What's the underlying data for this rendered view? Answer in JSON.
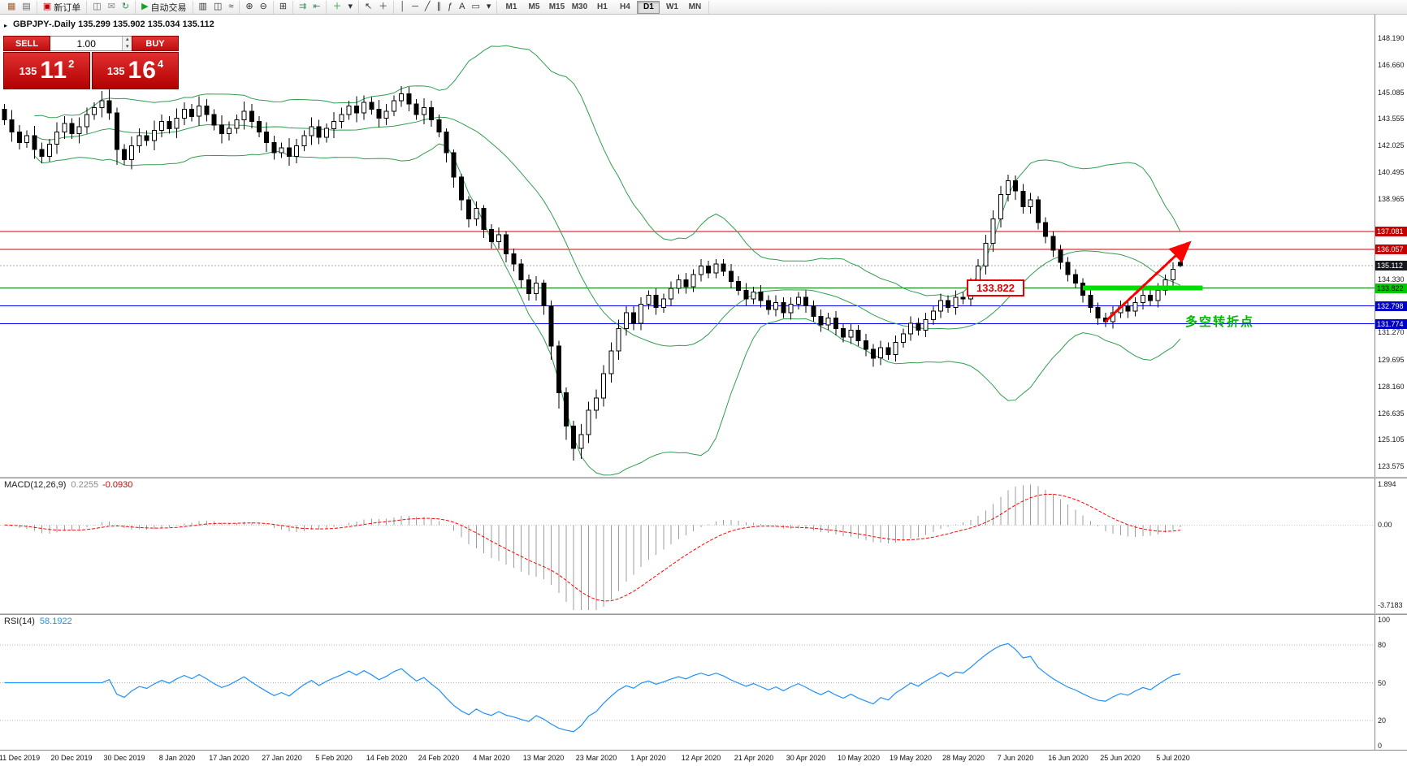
{
  "header": {
    "title": "GBPJPY-.Daily 135.299 135.902 135.034 135.112"
  },
  "toolbar": {
    "groups": [
      [
        {
          "id": "new-chart",
          "icon": "▦",
          "color": "#a0622d"
        },
        {
          "id": "profiles",
          "icon": "▤",
          "color": "#666"
        }
      ],
      [
        {
          "id": "new-order",
          "icon": "▣",
          "color": "#c00000",
          "label": "新订单"
        }
      ],
      [
        {
          "id": "chart-window",
          "icon": "◫",
          "color": "#666"
        },
        {
          "id": "mail",
          "icon": "✉",
          "color": "#888"
        },
        {
          "id": "refresh",
          "icon": "↻",
          "color": "#2e8b57"
        }
      ],
      [
        {
          "id": "autotrading",
          "icon": "▶",
          "color": "#17a02b",
          "label": "自动交易"
        }
      ],
      [
        {
          "id": "bars-chart",
          "icon": "▥",
          "color": "#333"
        },
        {
          "id": "candles-chart",
          "icon": "◫",
          "color": "#333"
        },
        {
          "id": "line-chart",
          "icon": "≈",
          "color": "#333"
        }
      ],
      [
        {
          "id": "zoom-in",
          "icon": "⊕",
          "color": "#333"
        },
        {
          "id": "zoom-out",
          "icon": "⊖",
          "color": "#333"
        }
      ],
      [
        {
          "id": "tile-windows",
          "icon": "⊞",
          "color": "#333"
        }
      ],
      [
        {
          "id": "auto-scroll",
          "icon": "⇉",
          "color": "#2e8b57"
        },
        {
          "id": "chart-shift",
          "icon": "⇤",
          "color": "#2e8b57"
        }
      ],
      [
        {
          "id": "indicators",
          "icon": "＋",
          "color": "#17a02b"
        },
        {
          "id": "indicators-dropdown",
          "icon": "▾",
          "color": "#333"
        }
      ],
      [
        {
          "id": "cursor",
          "icon": "↖",
          "color": "#333"
        },
        {
          "id": "crosshair",
          "icon": "＋",
          "color": "#333"
        }
      ],
      [
        {
          "id": "vertical-line",
          "icon": "│",
          "color": "#333"
        },
        {
          "id": "horizontal-line",
          "icon": "─",
          "color": "#333"
        },
        {
          "id": "trendline",
          "icon": "╱",
          "color": "#333"
        },
        {
          "id": "channel",
          "icon": "∥",
          "color": "#333"
        },
        {
          "id": "fibonacci",
          "icon": "ƒ",
          "color": "#333"
        },
        {
          "id": "text",
          "icon": "A",
          "color": "#333"
        },
        {
          "id": "text-label",
          "icon": "▭",
          "color": "#333"
        },
        {
          "id": "shapes-dropdown",
          "icon": "▾",
          "color": "#333"
        }
      ]
    ],
    "timeframes": [
      "M1",
      "M5",
      "M15",
      "M30",
      "H1",
      "H4",
      "D1",
      "W1",
      "MN"
    ],
    "active_timeframe": "D1",
    "right_icons": [
      {
        "id": "community",
        "icon": "➤"
      },
      {
        "id": "arrange",
        "icon": "▦"
      }
    ]
  },
  "trade": {
    "sell_label": "SELL",
    "buy_label": "BUY",
    "volume": "1.00",
    "sell_price": {
      "prefix": "135",
      "big": "11",
      "sup": "2"
    },
    "buy_price": {
      "prefix": "135",
      "big": "16",
      "sup": "4"
    }
  },
  "indicators": {
    "macd": {
      "label": "MACD(12,26,9)",
      "value_main": "0.2255",
      "value_signal": "-0.0930",
      "scale": [
        "1.894",
        "0.00",
        "-3.7183"
      ]
    },
    "rsi": {
      "label": "RSI(14)",
      "value": "58.1922",
      "levels": [
        80,
        50,
        20
      ],
      "scale": [
        "100",
        "80",
        "50",
        "20",
        "0"
      ]
    }
  },
  "price_scale": {
    "axis_labels": [
      "148.190",
      "146.660",
      "145.085",
      "143.555",
      "142.025",
      "140.495",
      "138.965",
      "134.330",
      "131.270",
      "129.695",
      "128.160",
      "126.635",
      "125.105",
      "123.575"
    ],
    "badges": [
      {
        "text": "137.081",
        "type": "red"
      },
      {
        "text": "136.057",
        "type": "red"
      },
      {
        "text": "135.112",
        "type": "dark"
      },
      {
        "text": "133.822",
        "type": "green"
      },
      {
        "text": "132.798",
        "type": "blue"
      },
      {
        "text": "131.774",
        "type": "blue"
      }
    ]
  },
  "chart_data": {
    "type": "candlestick",
    "symbol": "GBPJPY-",
    "period": "Daily",
    "ohlc_display": [
      135.299,
      135.902,
      135.034,
      135.112
    ],
    "ylim": [
      122.97,
      149.55
    ],
    "bollinger": {
      "period": 20,
      "deviation": 2
    },
    "hlines": [
      {
        "price": 137.081,
        "color": "#cf0000",
        "dash": null
      },
      {
        "price": 136.057,
        "color": "#cf0000",
        "dash": null
      },
      {
        "price": 135.112,
        "color": "#a8a8a8",
        "dash": "2,2"
      },
      {
        "price": 133.822,
        "color": "#007d00",
        "dash": null
      },
      {
        "price": 132.798,
        "color": "#0000ee",
        "dash": null
      },
      {
        "price": 131.774,
        "color": "#0000ee",
        "dash": null
      }
    ],
    "date_labels": {
      "first_bar": 2,
      "step": 7,
      "labels": [
        "11 Dec 2019",
        "20 Dec 2019",
        "30 Dec 2019",
        "8 Jan 2020",
        "17 Jan 2020",
        "27 Jan 2020",
        "5 Feb 2020",
        "14 Feb 2020",
        "24 Feb 2020",
        "4 Mar 2020",
        "13 Mar 2020",
        "23 Mar 2020",
        "1 Apr 2020",
        "12 Apr 2020",
        "21 Apr 2020",
        "30 Apr 2020",
        "10 May 2020",
        "19 May 2020",
        "28 May 2020",
        "7 Jun 2020",
        "16 Jun 2020",
        "25 Jun 2020",
        "5 Jul 2020"
      ]
    },
    "annotations": {
      "price_tag": {
        "text": "133.822",
        "bar": 128.5,
        "price": 133.822
      },
      "support_segment": {
        "price": 133.822,
        "from_bar": 144,
        "to_bar": 160,
        "color": "#00dd00"
      },
      "trend_arrow": {
        "from_bar": 147,
        "from_price": 131.9,
        "to_bar": 158,
        "to_price": 136.35,
        "color": "#ff0000"
      },
      "note": {
        "text": "多空转折点",
        "bar": 157.6,
        "price": 132.0,
        "color": "#00b800"
      }
    },
    "candles": [
      [
        144.1,
        144.4,
        143.2,
        143.5
      ],
      [
        143.5,
        144.05,
        142.25,
        142.8
      ],
      [
        142.8,
        143.2,
        141.8,
        142.2
      ],
      [
        142.2,
        142.9,
        141.9,
        142.6
      ],
      [
        142.6,
        143.15,
        141.25,
        141.8
      ],
      [
        141.8,
        142.2,
        141,
        141.4
      ],
      [
        141.4,
        142.4,
        141.1,
        142.1
      ],
      [
        142.1,
        143.35,
        141.55,
        142.8
      ],
      [
        142.8,
        143.7,
        142.4,
        143.3
      ],
      [
        143.3,
        143.6,
        142.4,
        142.7
      ],
      [
        142.7,
        143.65,
        142.15,
        143.1
      ],
      [
        143.1,
        144.2,
        142.7,
        143.8
      ],
      [
        143.8,
        144.5,
        143.5,
        144.2
      ],
      [
        144.2,
        145.15,
        143.65,
        144.6
      ],
      [
        144.6,
        145.3,
        143.5,
        143.9
      ],
      [
        143.9,
        144.2,
        140.9,
        141.8
      ],
      [
        141.8,
        142.1,
        140.9,
        141.2
      ],
      [
        141.2,
        142.55,
        140.65,
        142
      ],
      [
        142,
        143,
        141.6,
        142.6
      ],
      [
        142.6,
        142.9,
        142,
        142.3
      ],
      [
        142.3,
        143.45,
        141.75,
        142.9
      ],
      [
        142.9,
        143.8,
        142.5,
        143.4
      ],
      [
        143.4,
        143.7,
        142.7,
        143
      ],
      [
        143,
        144.15,
        142.45,
        143.6
      ],
      [
        143.6,
        144.5,
        143.2,
        144.1
      ],
      [
        144.1,
        144.4,
        143.4,
        143.7
      ],
      [
        143.7,
        144.85,
        143.15,
        144.3
      ],
      [
        144.3,
        144.7,
        143.4,
        143.8
      ],
      [
        143.8,
        144.1,
        142.9,
        143.2
      ],
      [
        143.2,
        143.75,
        142.15,
        142.7
      ],
      [
        142.7,
        143.4,
        142.3,
        143
      ],
      [
        143,
        143.8,
        142.7,
        143.5
      ],
      [
        143.5,
        144.55,
        142.95,
        144
      ],
      [
        144,
        144.4,
        143,
        143.4
      ],
      [
        143.4,
        143.7,
        142.5,
        142.8
      ],
      [
        142.8,
        143.35,
        141.65,
        142.2
      ],
      [
        142.2,
        142.6,
        141.2,
        141.6
      ],
      [
        141.6,
        142.2,
        141.3,
        141.9
      ],
      [
        141.9,
        142.45,
        140.85,
        141.4
      ],
      [
        141.4,
        142.4,
        141,
        142
      ],
      [
        142,
        142.9,
        141.7,
        142.6
      ],
      [
        142.6,
        143.65,
        142.05,
        143.1
      ],
      [
        143.1,
        143.5,
        142.1,
        142.5
      ],
      [
        142.5,
        143.3,
        142.2,
        143
      ],
      [
        143,
        143.95,
        142.45,
        143.4
      ],
      [
        143.4,
        144.2,
        143,
        143.8
      ],
      [
        143.8,
        144.6,
        143.5,
        144.3
      ],
      [
        144.3,
        144.85,
        143.35,
        143.9
      ],
      [
        143.9,
        144.9,
        143.5,
        144.5
      ],
      [
        144.5,
        144.8,
        143.8,
        144.1
      ],
      [
        144.1,
        144.65,
        143.05,
        143.6
      ],
      [
        143.6,
        144.4,
        143.2,
        144
      ],
      [
        144,
        144.9,
        143.7,
        144.6
      ],
      [
        144.6,
        145.45,
        144.25,
        145
      ],
      [
        145,
        145.4,
        144,
        144.4
      ],
      [
        144.4,
        144.7,
        143.5,
        143.8
      ],
      [
        143.8,
        144.75,
        143.25,
        144.2
      ],
      [
        144.2,
        144.6,
        143.1,
        143.5
      ],
      [
        143.5,
        143.8,
        142.5,
        142.8
      ],
      [
        142.8,
        143,
        141.05,
        141.6
      ],
      [
        141.6,
        141.8,
        139.6,
        140.2
      ],
      [
        140.2,
        140.4,
        138.3,
        138.9
      ],
      [
        138.9,
        139.1,
        137.3,
        137.8
      ],
      [
        137.8,
        138.8,
        137.4,
        138.4
      ],
      [
        138.4,
        138.6,
        136.7,
        137.2
      ],
      [
        137.2,
        137.5,
        136.1,
        136.5
      ],
      [
        136.5,
        137.3,
        136.1,
        136.9
      ],
      [
        136.9,
        137.1,
        135.3,
        135.8
      ],
      [
        135.8,
        136.1,
        134.8,
        135.2
      ],
      [
        135.2,
        135.5,
        133.8,
        134.3
      ],
      [
        134.3,
        134.6,
        133.1,
        133.5
      ],
      [
        133.5,
        134.5,
        133.1,
        134.1
      ],
      [
        134.1,
        134.3,
        132.3,
        132.8
      ],
      [
        132.8,
        133.1,
        129.7,
        130.5
      ],
      [
        130.5,
        130.8,
        126.9,
        127.8
      ],
      [
        127.8,
        128.1,
        125.1,
        125.9
      ],
      [
        125.9,
        126.2,
        123.9,
        124.6
      ],
      [
        124.6,
        126,
        124,
        125.4
      ],
      [
        125.4,
        127.3,
        124.9,
        126.8
      ],
      [
        126.8,
        128,
        126.3,
        127.5
      ],
      [
        127.5,
        129.4,
        127,
        128.9
      ],
      [
        128.9,
        130.7,
        128.4,
        130.2
      ],
      [
        130.2,
        132,
        129.7,
        131.5
      ],
      [
        131.5,
        132.8,
        131.1,
        132.4
      ],
      [
        132.4,
        132.8,
        131.4,
        131.8
      ],
      [
        131.8,
        133.3,
        131.4,
        132.9
      ],
      [
        132.9,
        133.7,
        132.6,
        133.4
      ],
      [
        133.4,
        133.8,
        132.3,
        132.7
      ],
      [
        132.7,
        133.5,
        132.4,
        133.2
      ],
      [
        133.2,
        134.2,
        132.8,
        133.8
      ],
      [
        133.8,
        134.6,
        133.5,
        134.3
      ],
      [
        134.3,
        134.7,
        133.5,
        133.9
      ],
      [
        133.9,
        134.9,
        133.6,
        134.6
      ],
      [
        134.6,
        135.5,
        134.2,
        135.1
      ],
      [
        135.1,
        135.4,
        134.4,
        134.7
      ],
      [
        134.7,
        135.5,
        134.4,
        135.2
      ],
      [
        135.2,
        135.5,
        134.5,
        134.8
      ],
      [
        134.8,
        135.2,
        133.8,
        134.2
      ],
      [
        134.2,
        134.5,
        133.4,
        133.7
      ],
      [
        133.7,
        134.1,
        132.8,
        133.2
      ],
      [
        133.2,
        133.9,
        132.9,
        133.6
      ],
      [
        133.6,
        134,
        132.7,
        133.1
      ],
      [
        133.1,
        133.4,
        132.3,
        132.6
      ],
      [
        132.6,
        133.4,
        132.2,
        133
      ],
      [
        133,
        133.3,
        132.1,
        132.4
      ],
      [
        132.4,
        133.3,
        132,
        132.9
      ],
      [
        132.9,
        133.6,
        132.6,
        133.3
      ],
      [
        133.3,
        133.7,
        132.4,
        132.8
      ],
      [
        132.8,
        133.1,
        131.9,
        132.2
      ],
      [
        132.2,
        132.6,
        131.3,
        131.7
      ],
      [
        131.7,
        132.4,
        131.4,
        132.1
      ],
      [
        132.1,
        132.5,
        131.1,
        131.5
      ],
      [
        131.5,
        131.8,
        130.7,
        131
      ],
      [
        131,
        131.8,
        130.6,
        131.4
      ],
      [
        131.4,
        131.7,
        130.5,
        130.8
      ],
      [
        130.8,
        131.2,
        129.9,
        130.3
      ],
      [
        130.3,
        130.6,
        129.3,
        129.8
      ],
      [
        129.8,
        130.8,
        129.4,
        130.4
      ],
      [
        130.4,
        130.7,
        129.7,
        130
      ],
      [
        130,
        131.1,
        129.6,
        130.7
      ],
      [
        130.7,
        131.5,
        130.4,
        131.2
      ],
      [
        131.2,
        132.2,
        130.8,
        131.8
      ],
      [
        131.8,
        132.1,
        131.1,
        131.4
      ],
      [
        131.4,
        132.4,
        131,
        132
      ],
      [
        132,
        132.8,
        131.7,
        132.5
      ],
      [
        132.5,
        133.5,
        132.1,
        133.1
      ],
      [
        133.1,
        133.4,
        132.4,
        132.7
      ],
      [
        132.7,
        133.7,
        132.3,
        133.3
      ],
      [
        133.3,
        133.6,
        132.9,
        133.2
      ],
      [
        133.2,
        134.4,
        132.8,
        134
      ],
      [
        134,
        135.5,
        133.6,
        135.1
      ],
      [
        135.1,
        136.9,
        134.6,
        136.4
      ],
      [
        136.4,
        138.3,
        135.9,
        137.8
      ],
      [
        137.8,
        139.7,
        137.3,
        139.2
      ],
      [
        139.2,
        140.35,
        138.8,
        140
      ],
      [
        140,
        140.3,
        138.9,
        139.4
      ],
      [
        139.4,
        139.8,
        138.1,
        138.5
      ],
      [
        138.5,
        139.3,
        138.1,
        138.9
      ],
      [
        138.9,
        139.1,
        137.2,
        137.6
      ],
      [
        137.6,
        137.9,
        136.4,
        136.8
      ],
      [
        136.8,
        137.1,
        135.6,
        136
      ],
      [
        136,
        136.3,
        134.9,
        135.3
      ],
      [
        135.3,
        135.6,
        134.2,
        134.6
      ],
      [
        134.6,
        134.9,
        133.8,
        134.1
      ],
      [
        134.1,
        134.4,
        133,
        133.4
      ],
      [
        133.4,
        133.7,
        132.4,
        132.7
      ],
      [
        132.7,
        133,
        131.7,
        132.1
      ],
      [
        132.1,
        132.4,
        131.6,
        131.9
      ],
      [
        131.9,
        132.8,
        131.5,
        132.4
      ],
      [
        132.4,
        133.1,
        132.1,
        132.8
      ],
      [
        132.8,
        133.2,
        132.1,
        132.5
      ],
      [
        132.5,
        133.3,
        132.2,
        133
      ],
      [
        133,
        133.8,
        132.6,
        133.4
      ],
      [
        133.4,
        133.7,
        132.8,
        133.1
      ],
      [
        133.1,
        134.1,
        132.7,
        133.7
      ],
      [
        133.7,
        134.6,
        133.4,
        134.3
      ],
      [
        134.3,
        135.3,
        133.9,
        134.9
      ],
      [
        135.3,
        135.9,
        135.03,
        135.11
      ]
    ]
  }
}
